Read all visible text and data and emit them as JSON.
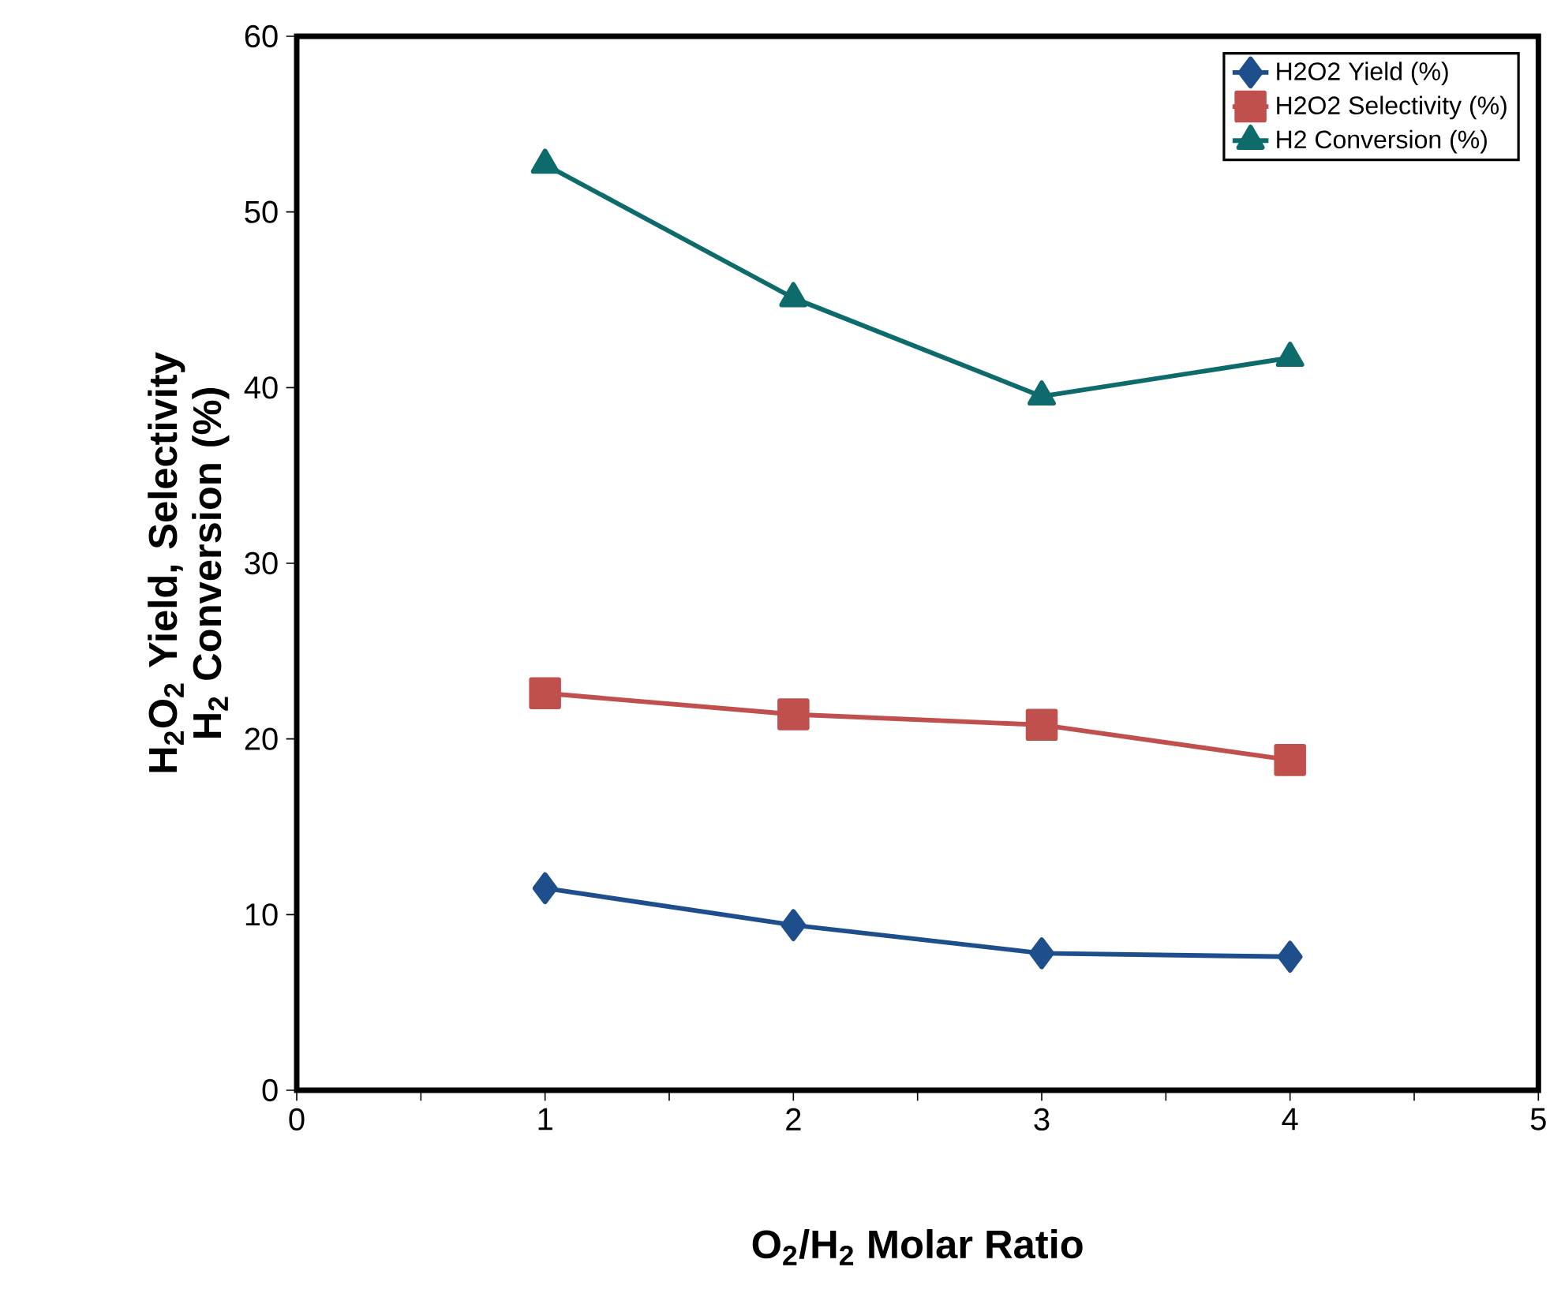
{
  "chart_data": {
    "type": "line",
    "xlabel": "O$_{2}$/H$_{2}$ Molar Ratio",
    "ylabel": "H$_{2}$O$_{2}$ Yield, Selectivity H$_{2}$ Conversion (%)",
    "x": [
      1,
      2,
      3,
      4
    ],
    "series": [
      {
        "name": "H2O2 Yield (%)",
        "color": "#1f4e8c",
        "marker": "diamond",
        "values": [
          11.5,
          9.4,
          7.8,
          7.6
        ]
      },
      {
        "name": "H2O2 Selectivity (%)",
        "color": "#c0504d",
        "marker": "square",
        "values": [
          22.6,
          21.4,
          20.8,
          18.8
        ]
      },
      {
        "name": "H2 Conversion (%)",
        "color": "#0e6b6b",
        "marker": "triangle",
        "values": [
          52.7,
          45.1,
          39.5,
          41.7
        ]
      }
    ],
    "xlim": [
      0,
      5
    ],
    "ylim": [
      0,
      60
    ],
    "xticks": [
      0,
      {
        "value": 0.5,
        "label": null
      },
      1,
      {
        "value": 1.5,
        "label": null
      },
      2,
      {
        "value": 2.5,
        "label": null
      },
      3,
      {
        "value": 3.5,
        "label": null
      },
      4,
      {
        "value": 4.5,
        "label": null
      },
      5
    ],
    "yticks": [
      0,
      10,
      20,
      30,
      40,
      50,
      60
    ],
    "grid": false,
    "legend": "top right",
    "line_style": "solid"
  }
}
